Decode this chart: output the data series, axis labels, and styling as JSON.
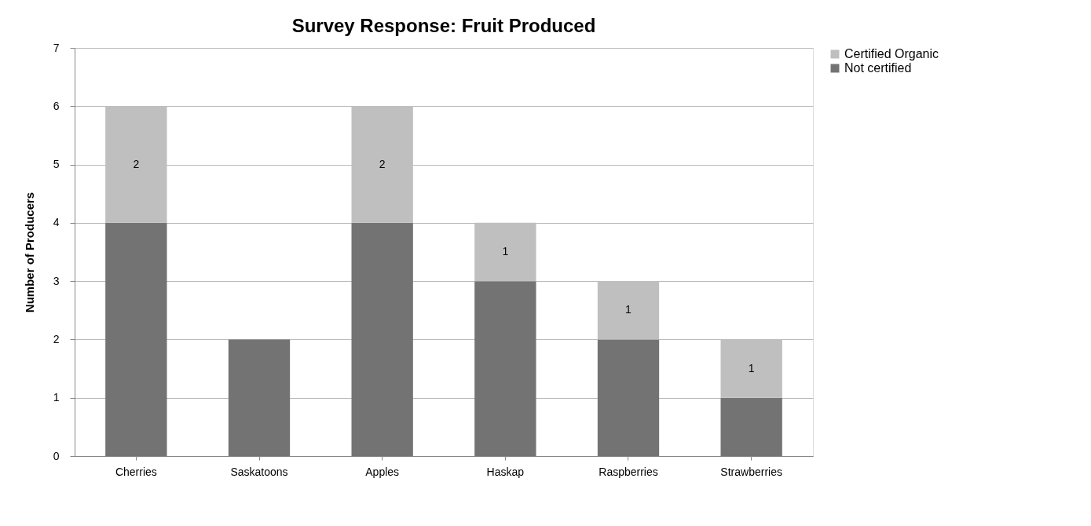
{
  "chart_data": {
    "type": "bar",
    "title": "Survey Response: Fruit Produced",
    "ylabel": "Number of Producers",
    "categories": [
      "Cherries",
      "Saskatoons",
      "Apples",
      "Haskap",
      "Raspberries",
      "Strawberries"
    ],
    "stacked": true,
    "series": [
      {
        "name": "Not certified",
        "color": "#737373",
        "values": [
          4,
          2,
          4,
          3,
          2,
          1
        ]
      },
      {
        "name": "Certified Organic",
        "color": "#bfbfbf",
        "values": [
          2,
          null,
          2,
          1,
          1,
          1
        ],
        "value_labels": [
          "2",
          null,
          "2",
          "1",
          "1",
          "1"
        ]
      }
    ],
    "ylim": [
      0,
      7
    ],
    "yticks": [
      0,
      1,
      2,
      3,
      4,
      5,
      6,
      7
    ],
    "grid": "y",
    "legend": "right"
  }
}
